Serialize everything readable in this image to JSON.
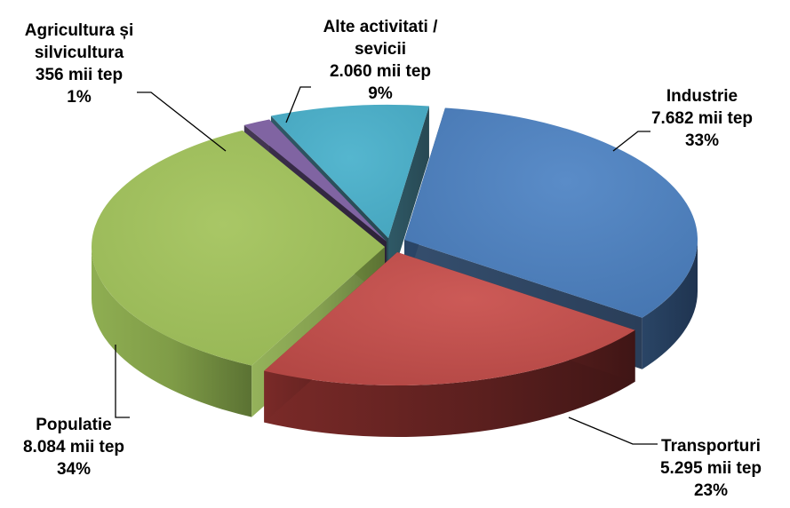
{
  "chart_data": {
    "type": "pie",
    "title": "",
    "unit": "mii tep",
    "slices": [
      {
        "label": "Industrie",
        "value_text": "7.682  mii tep",
        "value": 7682,
        "percent": "33%",
        "color": "#4F81BD"
      },
      {
        "label": "Transporturi",
        "value_text": "5.295  mii tep",
        "value": 5295,
        "percent": "23%",
        "color": "#C0504D"
      },
      {
        "label": "Populatie",
        "value_text": "8.084  mii tep",
        "value": 8084,
        "percent": "34%",
        "color": "#9BBB59"
      },
      {
        "label": "Agricultura și silvicultura",
        "value_text": "356  mii tep",
        "value": 356,
        "percent": "1%",
        "color": "#8064A2"
      },
      {
        "label": "Alte activitati / sevicii",
        "value_text": "2.060  mii tep",
        "value": 2060,
        "percent": "9%",
        "color": "#4BACC6"
      }
    ],
    "labels": {
      "industrie": {
        "line1": "Industrie",
        "line2": "7.682  mii tep",
        "line3": "33%"
      },
      "transporturi": {
        "line1": "Transporturi",
        "line2": "5.295  mii tep",
        "line3": "23%"
      },
      "populatie": {
        "line1": "Populatie",
        "line2": "8.084  mii tep",
        "line3": "34%"
      },
      "agricultura": {
        "line1": "Agricultura și",
        "line2": "silvicultura",
        "line3": "356  mii tep",
        "line4": "1%"
      },
      "alte": {
        "line1": "Alte activitati /",
        "line2": "sevicii",
        "line3": "2.060  mii tep",
        "line4": "9%"
      }
    },
    "exploded": true,
    "style": "3d",
    "legend": "none"
  }
}
